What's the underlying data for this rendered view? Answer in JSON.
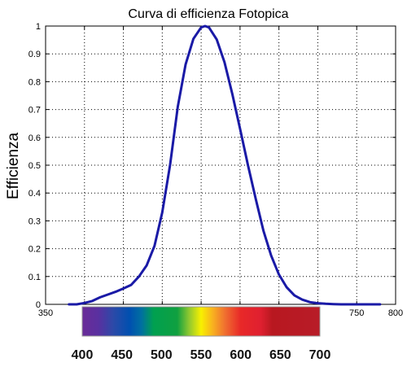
{
  "chart_data": {
    "type": "line",
    "title": "Curva di efficienza Fotopica",
    "xlabel": "",
    "ylabel": "Efficienza",
    "xlim": [
      350,
      800
    ],
    "ylim": [
      0,
      1
    ],
    "grid": true,
    "x_ticks": [
      "350",
      "750",
      "800"
    ],
    "y_ticks": [
      "0",
      "0.1",
      "0.2",
      "0.3",
      "0.4",
      "0.5",
      "0.6",
      "0.7",
      "0.8",
      "0.9",
      "1"
    ],
    "series": [
      {
        "name": "",
        "color": "#1a1aa6",
        "x": [
          380,
          390,
          400,
          410,
          420,
          430,
          440,
          450,
          460,
          470,
          480,
          490,
          500,
          510,
          520,
          530,
          540,
          550,
          555,
          560,
          570,
          580,
          590,
          600,
          610,
          620,
          630,
          640,
          650,
          660,
          670,
          680,
          690,
          700,
          710,
          720,
          730,
          740,
          750,
          760,
          770,
          780
        ],
        "y": [
          0.0,
          0.0,
          0.005,
          0.012,
          0.025,
          0.035,
          0.045,
          0.057,
          0.07,
          0.1,
          0.14,
          0.21,
          0.33,
          0.5,
          0.71,
          0.862,
          0.954,
          0.995,
          1.0,
          0.995,
          0.952,
          0.87,
          0.757,
          0.631,
          0.503,
          0.381,
          0.265,
          0.175,
          0.107,
          0.061,
          0.032,
          0.017,
          0.008,
          0.004,
          0.002,
          0.001,
          0.0,
          0.0,
          0.0,
          0.0,
          0.0,
          0.0
        ]
      }
    ],
    "spectrum": {
      "range": [
        400,
        700
      ],
      "ticks": [
        "400",
        "450",
        "500",
        "550",
        "600",
        "650",
        "700"
      ],
      "colors": [
        {
          "nm": 400,
          "color": "#6a2c98"
        },
        {
          "nm": 420,
          "color": "#5a30a0"
        },
        {
          "nm": 440,
          "color": "#2a4aa8"
        },
        {
          "nm": 460,
          "color": "#0050b0"
        },
        {
          "nm": 475,
          "color": "#0070a0"
        },
        {
          "nm": 490,
          "color": "#00a050"
        },
        {
          "nm": 520,
          "color": "#10a040"
        },
        {
          "nm": 535,
          "color": "#90c830"
        },
        {
          "nm": 550,
          "color": "#f8f000"
        },
        {
          "nm": 565,
          "color": "#f8b020"
        },
        {
          "nm": 580,
          "color": "#f07030"
        },
        {
          "nm": 600,
          "color": "#e82828"
        },
        {
          "nm": 625,
          "color": "#e02030"
        },
        {
          "nm": 640,
          "color": "#b81820"
        },
        {
          "nm": 700,
          "color": "#b81c28"
        }
      ]
    }
  }
}
